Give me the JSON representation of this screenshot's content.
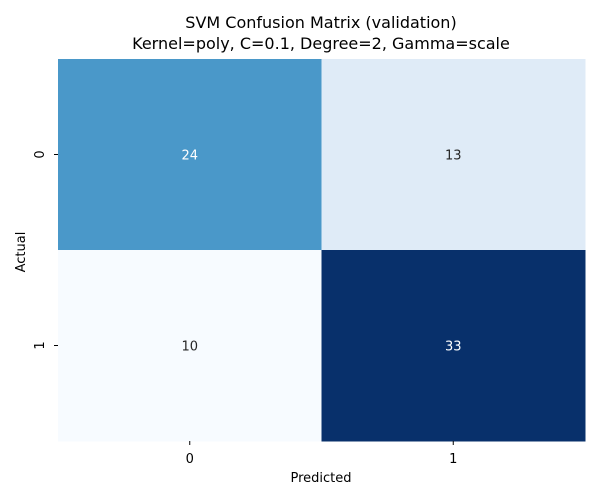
{
  "chart_data": {
    "type": "heatmap",
    "title_line1": "SVM Confusion Matrix (validation)",
    "title_line2": "Kernel=poly, C=0.1, Degree=2, Gamma=scale",
    "xlabel": "Predicted",
    "ylabel": "Actual",
    "x_categories": [
      "0",
      "1"
    ],
    "y_categories": [
      "0",
      "1"
    ],
    "values": [
      [
        24,
        13
      ],
      [
        10,
        33
      ]
    ],
    "labels": [
      [
        "24",
        "13"
      ],
      [
        "10",
        "33"
      ]
    ],
    "colormap": "Blues",
    "vmin": 10,
    "vmax": 33,
    "colorbar": false,
    "colors": {
      "cell_0_0": "#4a98c9",
      "cell_0_1": "#dfebf7",
      "cell_1_0": "#f7fbff",
      "cell_1_1": "#08306b",
      "dark_text": "#262626",
      "light_text": "#ffffff"
    }
  }
}
